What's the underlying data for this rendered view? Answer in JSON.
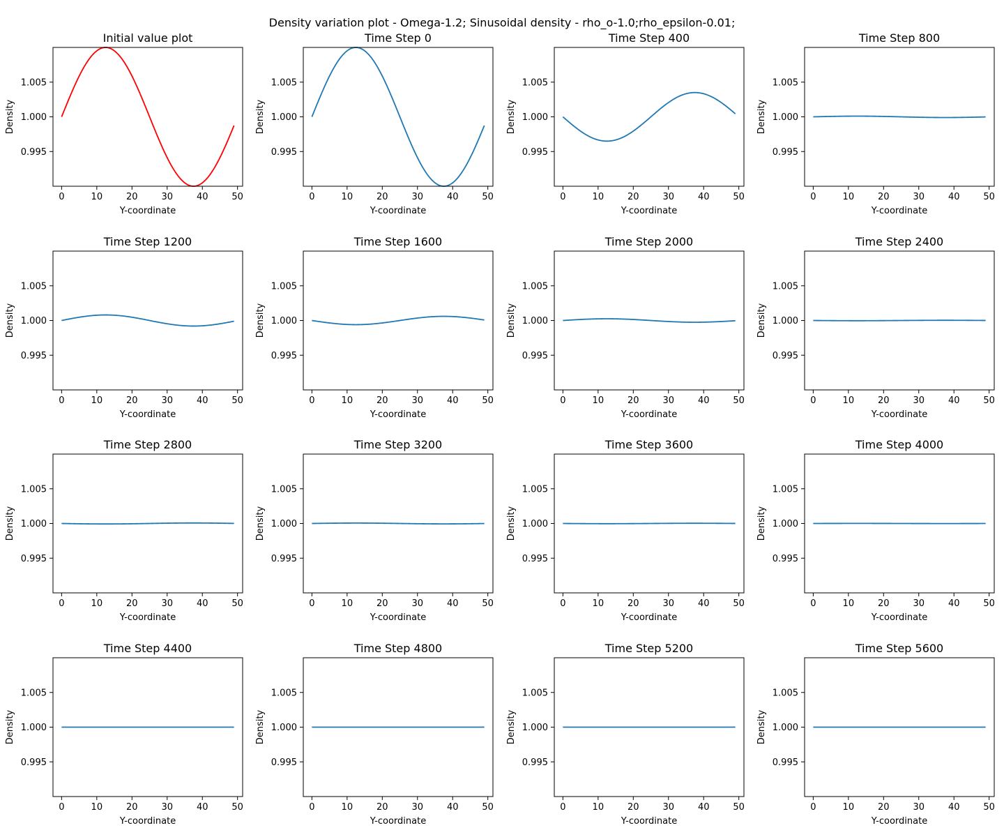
{
  "figure": {
    "title": "Density variation plot - Omega-1.2; Sinusoidal density - rho_o-1.0;rho_epsilon-0.01;"
  },
  "chart_data": [
    {
      "type": "line",
      "title": "Initial value plot",
      "xlabel": "Y-coordinate",
      "ylabel": "Density",
      "amplitude": 0.01,
      "color": "#ff0000"
    },
    {
      "type": "line",
      "title": "Time Step 0",
      "xlabel": "Y-coordinate",
      "ylabel": "Density",
      "amplitude": 0.01,
      "color": "#1f77b4"
    },
    {
      "type": "line",
      "title": "Time Step 400",
      "xlabel": "Y-coordinate",
      "ylabel": "Density",
      "amplitude": -0.0035,
      "color": "#1f77b4"
    },
    {
      "type": "line",
      "title": "Time Step 800",
      "xlabel": "Y-coordinate",
      "ylabel": "Density",
      "amplitude": 0.0001,
      "color": "#1f77b4"
    },
    {
      "type": "line",
      "title": "Time Step 1200",
      "xlabel": "Y-coordinate",
      "ylabel": "Density",
      "amplitude": 0.0008,
      "color": "#1f77b4"
    },
    {
      "type": "line",
      "title": "Time Step 1600",
      "xlabel": "Y-coordinate",
      "ylabel": "Density",
      "amplitude": -0.0006,
      "color": "#1f77b4"
    },
    {
      "type": "line",
      "title": "Time Step 2000",
      "xlabel": "Y-coordinate",
      "ylabel": "Density",
      "amplitude": 0.00025,
      "color": "#1f77b4"
    },
    {
      "type": "line",
      "title": "Time Step 2400",
      "xlabel": "Y-coordinate",
      "ylabel": "Density",
      "amplitude": -3e-05,
      "color": "#1f77b4"
    },
    {
      "type": "line",
      "title": "Time Step 2800",
      "xlabel": "Y-coordinate",
      "ylabel": "Density",
      "amplitude": -7e-05,
      "color": "#1f77b4"
    },
    {
      "type": "line",
      "title": "Time Step 3200",
      "xlabel": "Y-coordinate",
      "ylabel": "Density",
      "amplitude": 6e-05,
      "color": "#1f77b4"
    },
    {
      "type": "line",
      "title": "Time Step 3600",
      "xlabel": "Y-coordinate",
      "ylabel": "Density",
      "amplitude": -3e-05,
      "color": "#1f77b4"
    },
    {
      "type": "line",
      "title": "Time Step 4000",
      "xlabel": "Y-coordinate",
      "ylabel": "Density",
      "amplitude": 1e-05,
      "color": "#1f77b4"
    },
    {
      "type": "line",
      "title": "Time Step 4400",
      "xlabel": "Y-coordinate",
      "ylabel": "Density",
      "amplitude": 0.0,
      "color": "#1f77b4"
    },
    {
      "type": "line",
      "title": "Time Step 4800",
      "xlabel": "Y-coordinate",
      "ylabel": "Density",
      "amplitude": 0.0,
      "color": "#1f77b4"
    },
    {
      "type": "line",
      "title": "Time Step 5200",
      "xlabel": "Y-coordinate",
      "ylabel": "Density",
      "amplitude": 0.0,
      "color": "#1f77b4"
    },
    {
      "type": "line",
      "title": "Time Step 5600",
      "xlabel": "Y-coordinate",
      "ylabel": "Density",
      "amplitude": 0.0,
      "color": "#1f77b4"
    }
  ],
  "shared_axes": {
    "x_range": [
      0,
      49
    ],
    "xlim": [
      -2.45,
      51.45
    ],
    "ylim": [
      0.99,
      1.01
    ],
    "x_ticks": [
      0,
      10,
      20,
      30,
      40,
      50
    ],
    "x_tick_labels": [
      "0",
      "10",
      "20",
      "30",
      "40",
      "50"
    ],
    "y_ticks": [
      0.995,
      1.0,
      1.005
    ],
    "y_tick_labels": [
      "0.995",
      "1.000",
      "1.005"
    ],
    "rho_0": 1.0,
    "period": 50,
    "grid": false,
    "legend": "none"
  }
}
